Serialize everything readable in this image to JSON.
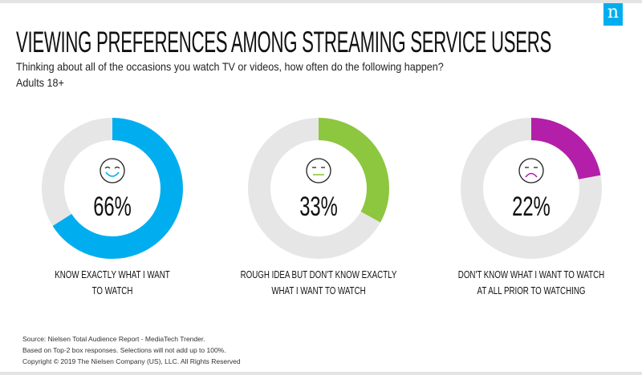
{
  "header": {
    "title": "VIEWING PREFERENCES AMONG STREAMING SERVICE USERS",
    "question": "Thinking about all of the occasions you watch TV or videos, how often do the following happen?",
    "base": "Adults 18+",
    "logo": "n"
  },
  "chart_data": {
    "type": "donut",
    "title": "VIEWING PREFERENCES AMONG STREAMING SERVICE USERS",
    "series": [
      {
        "label": "KNOW EXACTLY WHAT I WANT TO WATCH",
        "label_lines": [
          "KNOW EXACTLY WHAT I WANT",
          "TO WATCH"
        ],
        "value": 66,
        "display": "66%",
        "color": "#00aeef",
        "face": "happy-face-icon"
      },
      {
        "label": "ROUGH IDEA BUT DON'T KNOW EXACTLY WHAT I WANT TO WATCH",
        "label_lines": [
          "ROUGH IDEA BUT DON'T KNOW EXACTLY",
          "WHAT I WANT TO WATCH"
        ],
        "value": 33,
        "display": "33%",
        "color": "#8dc63f",
        "face": "neutral-face-icon"
      },
      {
        "label": "DON'T KNOW WHAT I WANT TO WATCH AT ALL PRIOR TO WATCHING",
        "label_lines": [
          "DON'T KNOW WHAT I WANT TO WATCH",
          "AT ALL PRIOR TO WATCHING"
        ],
        "value": 22,
        "display": "22%",
        "color": "#b31fa8",
        "face": "sad-face-icon"
      }
    ],
    "track_color": "#e6e6e6"
  },
  "footer": {
    "lines": [
      "Source: Nielsen Total Audience Report - MediaTech Trender.",
      "Based on Top-2 box responses. Selections will not add up to 100%.",
      "Copyright © 2019 The Nielsen Company (US), LLC. All Rights Reserved"
    ]
  }
}
